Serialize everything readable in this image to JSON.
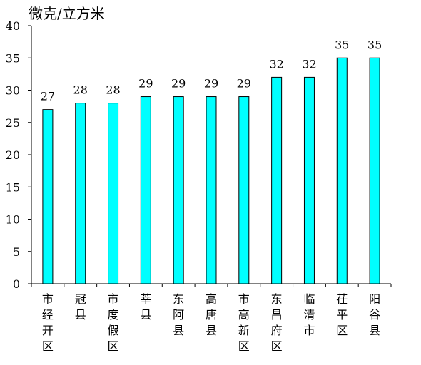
{
  "chart_data": {
    "type": "bar",
    "unit_label": "微克/立方米",
    "categories": [
      "市经开区",
      "冠县",
      "市度假区",
      "莘县",
      "东阿县",
      "高唐县",
      "市高新区",
      "东昌府区",
      "临清市",
      "茌平区",
      "阳谷县"
    ],
    "values": [
      27,
      28,
      28,
      29,
      29,
      29,
      29,
      32,
      32,
      35,
      35
    ],
    "data_labels": [
      "27",
      "28",
      "28",
      "29",
      "29",
      "29",
      "29",
      "32",
      "32",
      "35",
      "35"
    ],
    "yticks": [
      "0",
      "5",
      "10",
      "15",
      "20",
      "25",
      "30",
      "35",
      "40"
    ],
    "ylim": [
      0,
      40
    ],
    "bar_color": "#00ffff",
    "bar_stroke": "#000000",
    "grid": false,
    "legend": "none"
  }
}
